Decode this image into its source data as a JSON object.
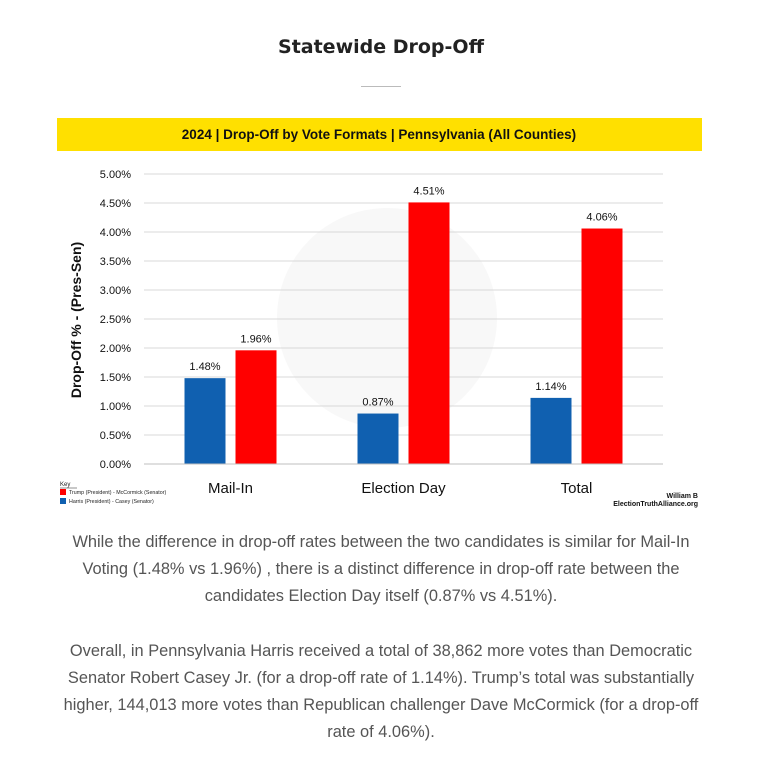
{
  "page": {
    "title": "Statewide Drop-Off",
    "paragraph_1": "While the difference in drop-off rates between the two candidates is similar for Mail-In Voting (1.48% vs 1.96%) , there is a distinct difference in drop-off rate between the candidates Election Day itself (0.87% vs 4.51%).",
    "paragraph_2": "Overall, in Pennsylvania Harris received a total of 38,862 more votes than Democratic Senator Robert Casey Jr. (for a drop-off rate of 1.14%). Trump’s total was substantially higher, 144,013 more votes than Republican challenger Dave McCormick (for a drop-off rate of 4.06%)."
  },
  "chart_data": {
    "type": "bar",
    "title": "2024 | Drop-Off by Vote Formats | Pennsylvania (All Counties)",
    "ylabel": "Drop-Off % - (Pres-Sen)",
    "xlabel": "",
    "categories": [
      "Mail-In",
      "Election Day",
      "Total"
    ],
    "series": [
      {
        "name": "Harris (President) - Casey (Senator)",
        "color": "#1060B0",
        "values": [
          1.48,
          0.87,
          1.14
        ],
        "labels": [
          "1.48%",
          "0.87%",
          "1.14%"
        ]
      },
      {
        "name": "Trump (President) - McCormick (Senator)",
        "color": "#FF0000",
        "values": [
          1.96,
          4.51,
          4.06
        ],
        "labels": [
          "1.96%",
          "4.51%",
          "4.06%"
        ]
      }
    ],
    "ylim": [
      0,
      5
    ],
    "yticks": [
      0,
      0.5,
      1,
      1.5,
      2,
      2.5,
      3,
      3.5,
      4,
      4.5,
      5
    ],
    "ytick_labels": [
      "0.00%",
      "0.50%",
      "1.00%",
      "1.50%",
      "2.00%",
      "2.50%",
      "3.00%",
      "3.50%",
      "4.00%",
      "4.50%",
      "5.00%"
    ],
    "grid": true,
    "legend_title": "Key",
    "legend_position": "bottom-left",
    "banner_color": "#FFE000",
    "credit_1": "William B",
    "credit_2": "ElectionTruthAlliance.org"
  }
}
